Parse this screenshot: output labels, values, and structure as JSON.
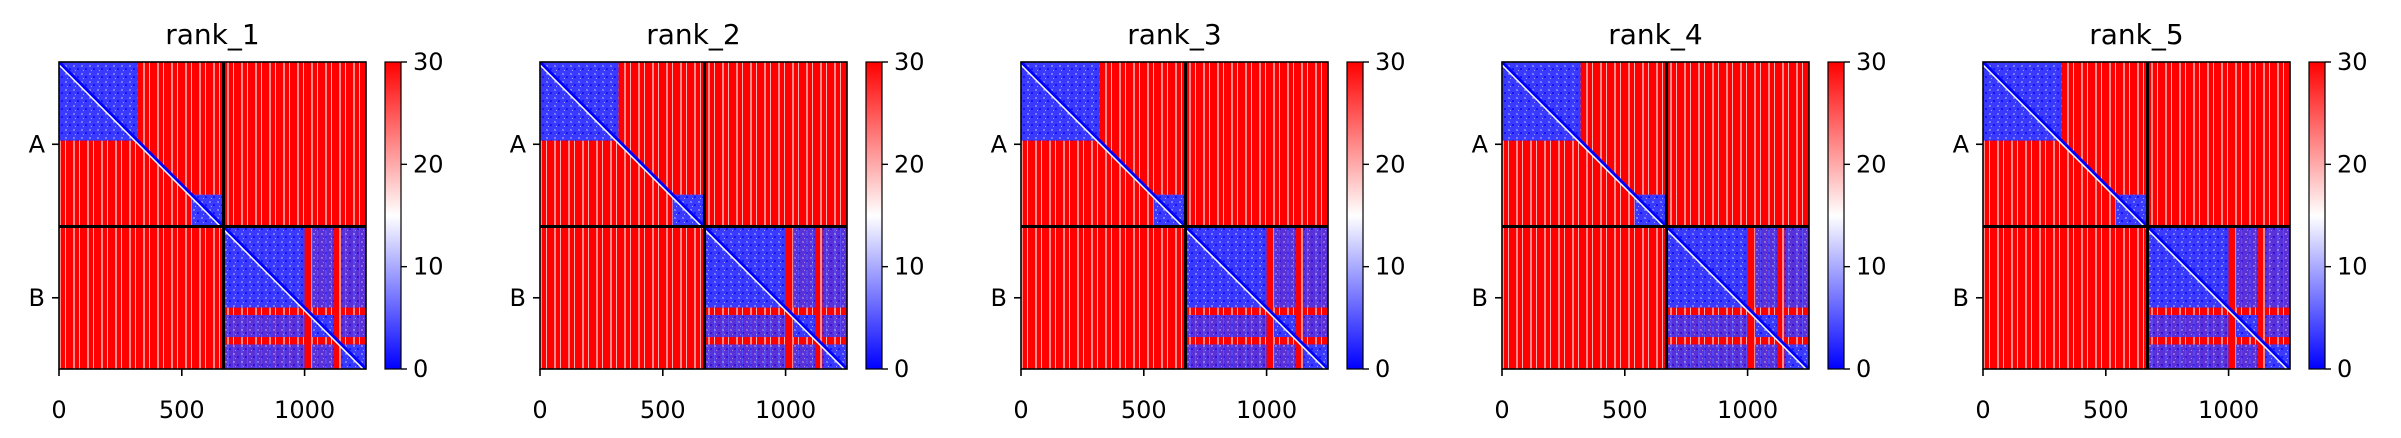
{
  "chart_data": {
    "type": "heatmap",
    "description": "Predicted aligned error (PAE) matrices for 5 ranked models of a two-chain complex; blue = low error, red = high error",
    "colormap": {
      "name": "bwr",
      "colors": {
        "low": "#0000ff",
        "mid": "#ffffff",
        "high": "#ff0000"
      }
    },
    "colorbar": {
      "range": [
        0,
        30
      ],
      "ticks": [
        "0",
        "10",
        "20",
        "30"
      ]
    },
    "x_axis": {
      "range": [
        0,
        1250
      ],
      "ticks": [
        "0",
        "500",
        "1000"
      ]
    },
    "y_axis": {
      "tick_labels": [
        "A",
        "B"
      ]
    },
    "chain_boundary": 670,
    "chains": [
      {
        "name": "A",
        "start": 0,
        "end": 670
      },
      {
        "name": "B",
        "start": 670,
        "end": 1250
      }
    ],
    "panels": [
      {
        "title": "rank_1"
      },
      {
        "title": "rank_2"
      },
      {
        "title": "rank_3"
      },
      {
        "title": "rank_4"
      },
      {
        "title": "rank_5"
      }
    ],
    "domain_structure": {
      "chain_A_domains": [
        [
          0,
          320
        ],
        [
          540,
          670
        ]
      ],
      "chain_B_domains": [
        [
          670,
          1000
        ],
        [
          1030,
          1120
        ],
        [
          1150,
          1250
        ]
      ],
      "values": {
        "intra_domain": 3,
        "diagonal": 0,
        "inter_domain": 29
      }
    }
  }
}
